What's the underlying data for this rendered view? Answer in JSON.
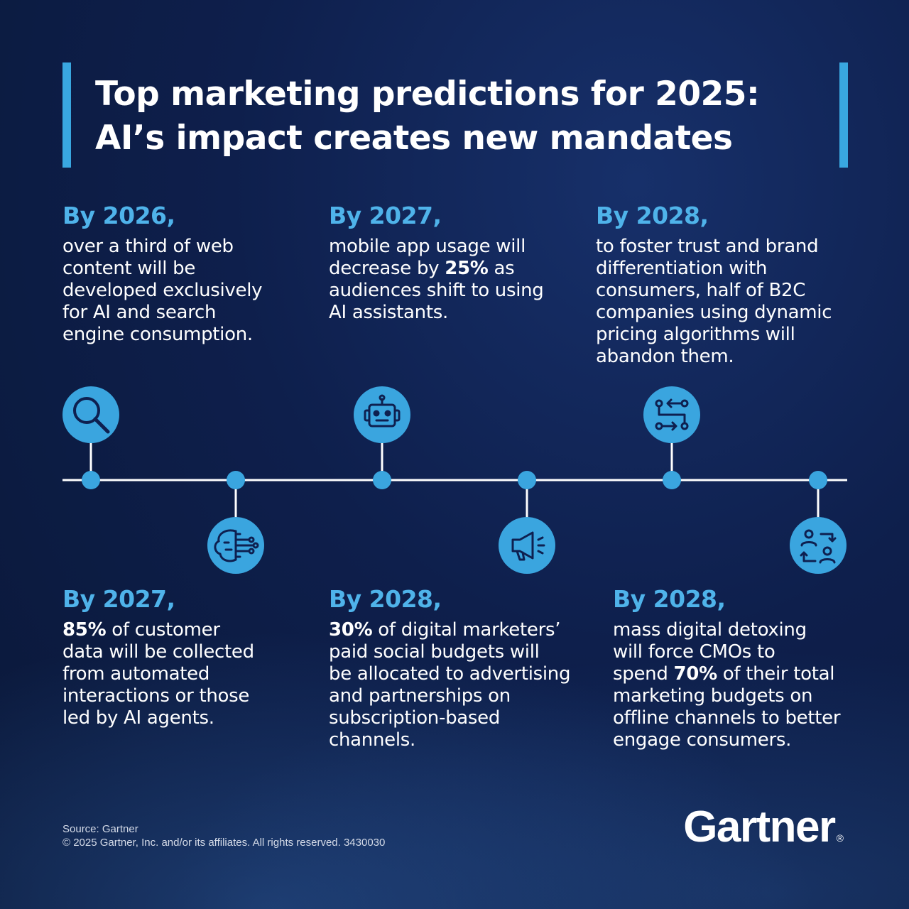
{
  "title": {
    "line1": "Top marketing predictions for 2025:",
    "line2": "AI’s impact creates new mandates"
  },
  "predictions": [
    {
      "year": "By 2026,",
      "icon": "search-icon",
      "lines": [
        "over a third of web",
        "content will be",
        "developed exclusively",
        "for AI and search",
        "engine consumption."
      ]
    },
    {
      "year": "By 2027,",
      "icon": "brain-circuit-icon",
      "lines": [
        [
          "",
          "85%",
          " of customer"
        ],
        "data will be collected",
        "from automated",
        "interactions or those",
        "led by AI agents."
      ]
    },
    {
      "year": "By 2027,",
      "icon": "robot-icon",
      "lines": [
        "mobile app usage will",
        [
          "decrease by ",
          "25%",
          " as"
        ],
        "audiences shift to using",
        "AI assistants."
      ]
    },
    {
      "year": "By 2028,",
      "icon": "megaphone-icon",
      "lines": [
        [
          "",
          "30%",
          " of digital marketers’"
        ],
        "paid social budgets will",
        "be allocated to advertising",
        "and partnerships on",
        "subscription-based",
        "channels."
      ]
    },
    {
      "year": "By 2028,",
      "icon": "workflow-arrows-icon",
      "lines": [
        "to foster trust and brand",
        "differentiation with",
        "consumers, half of B2C",
        "companies using dynamic",
        "pricing algorithms will",
        "abandon them."
      ]
    },
    {
      "year": "By 2028,",
      "icon": "people-exchange-icon",
      "lines": [
        "mass digital detoxing",
        "will force CMOs to",
        [
          "spend ",
          "70%",
          " of their total"
        ],
        "marketing budgets on",
        "offline channels to better",
        "engage consumers."
      ]
    }
  ],
  "footer": {
    "source": "Source: Gartner",
    "copyright": "© 2025 Gartner, Inc. and/or its affiliates. All rights reserved. 3430030"
  },
  "logo": {
    "text": "Gartner",
    "mark": "®"
  },
  "colors": {
    "accent": "#39a7e0",
    "year_text": "#4fb3ea",
    "icon_fill": "#3aa5df",
    "icon_stroke": "#0e2050",
    "background": "#0e1f4c"
  }
}
